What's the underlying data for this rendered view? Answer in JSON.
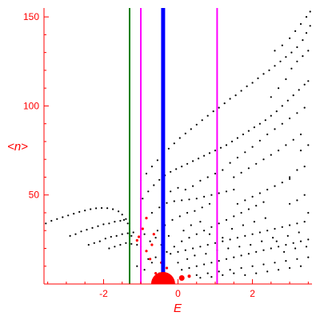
{
  "chart_data": {
    "type": "scatter",
    "title": "",
    "xlabel": "E",
    "ylabel": "<n>",
    "xlim": [
      -3.6,
      3.6
    ],
    "ylim": [
      0,
      155
    ],
    "xticks": [
      -2,
      0,
      2
    ],
    "yticks": [
      50,
      100,
      150
    ],
    "colors": {
      "axis": "#ff0000",
      "points": "#000000",
      "highlight": "#ff0000",
      "line_green": "#008000",
      "line_magenta": "#ff00ff",
      "line_blue": "#0000ff"
    },
    "vertical_lines": [
      {
        "x": -1.3,
        "color": "#008000",
        "width": 2
      },
      {
        "x": -1.0,
        "color": "#ff00ff",
        "width": 2
      },
      {
        "x": -0.4,
        "color": "#0000ff",
        "width": 5
      },
      {
        "x": 1.05,
        "color": "#ff00ff",
        "width": 2
      }
    ],
    "series": [
      {
        "color": "#000000",
        "points": [
          [
            -3.55,
            34
          ],
          [
            -3.4,
            35.5
          ],
          [
            -3.25,
            36.5
          ],
          [
            -3.1,
            37.5
          ],
          [
            -2.95,
            38.5
          ],
          [
            -2.8,
            39.5
          ],
          [
            -2.65,
            40.5
          ],
          [
            -2.5,
            41.3
          ],
          [
            -2.35,
            42
          ],
          [
            -2.2,
            42.5
          ],
          [
            -2.05,
            42.7
          ],
          [
            -1.9,
            42.6
          ],
          [
            -1.75,
            42
          ],
          [
            -1.6,
            40.8
          ],
          [
            -1.5,
            39
          ],
          [
            -1.4,
            36.5
          ],
          [
            -1.35,
            34
          ],
          [
            -2.9,
            27
          ],
          [
            -2.75,
            28
          ],
          [
            -2.6,
            29.5
          ],
          [
            -2.45,
            30.5
          ],
          [
            -2.3,
            31.5
          ],
          [
            -2.15,
            32.5
          ],
          [
            -2,
            33.5
          ],
          [
            -1.85,
            34
          ],
          [
            -1.7,
            35
          ],
          [
            -1.55,
            35.5
          ],
          [
            -1.45,
            36
          ],
          [
            -1.3,
            31
          ],
          [
            -1.2,
            29
          ],
          [
            -2.4,
            22
          ],
          [
            -2.25,
            23
          ],
          [
            -2.1,
            24
          ],
          [
            -1.95,
            25.5
          ],
          [
            -1.8,
            26.5
          ],
          [
            -1.65,
            27
          ],
          [
            -1.5,
            28
          ],
          [
            -1.35,
            28.5
          ],
          [
            -1.25,
            27
          ],
          [
            -1.85,
            20
          ],
          [
            -1.7,
            21
          ],
          [
            -1.55,
            22
          ],
          [
            -1.4,
            23
          ],
          [
            -1.25,
            22.5
          ],
          [
            -1.1,
            22
          ],
          [
            -1.0,
            21
          ],
          [
            -1.0,
            58
          ],
          [
            -0.85,
            62
          ],
          [
            -0.7,
            66
          ],
          [
            -0.55,
            69.5
          ],
          [
            -0.4,
            73
          ],
          [
            -0.25,
            76
          ],
          [
            -0.1,
            79
          ],
          [
            0.05,
            82
          ],
          [
            0.2,
            84.5
          ],
          [
            0.35,
            87
          ],
          [
            0.5,
            89.5
          ],
          [
            0.65,
            92
          ],
          [
            0.8,
            94.5
          ],
          [
            0.95,
            97
          ],
          [
            1.1,
            99
          ],
          [
            1.25,
            101.5
          ],
          [
            1.4,
            104
          ],
          [
            1.55,
            106
          ],
          [
            1.7,
            108.5
          ],
          [
            1.85,
            111
          ],
          [
            2,
            113
          ],
          [
            2.15,
            115.5
          ],
          [
            2.3,
            118
          ],
          [
            2.45,
            120
          ],
          [
            2.6,
            122.5
          ],
          [
            2.75,
            125
          ],
          [
            2.9,
            127.5
          ],
          [
            3.05,
            130
          ],
          [
            3.2,
            133
          ],
          [
            3.35,
            137
          ],
          [
            3.45,
            141
          ],
          [
            3.55,
            145
          ],
          [
            -0.95,
            48
          ],
          [
            -0.8,
            52
          ],
          [
            -0.65,
            55.5
          ],
          [
            -0.5,
            58.5
          ],
          [
            -0.35,
            61
          ],
          [
            -0.2,
            63
          ],
          [
            -0.05,
            64.5
          ],
          [
            0.1,
            66
          ],
          [
            0.25,
            67.5
          ],
          [
            0.4,
            69
          ],
          [
            0.55,
            70.5
          ],
          [
            0.7,
            72
          ],
          [
            0.85,
            73.5
          ],
          [
            1,
            75
          ],
          [
            1.15,
            76.5
          ],
          [
            1.3,
            78
          ],
          [
            1.45,
            80
          ],
          [
            1.6,
            82
          ],
          [
            1.75,
            84
          ],
          [
            1.9,
            86
          ],
          [
            2.05,
            88
          ],
          [
            2.2,
            90
          ],
          [
            2.35,
            92
          ],
          [
            2.5,
            94.5
          ],
          [
            2.65,
            97
          ],
          [
            2.8,
            100
          ],
          [
            2.95,
            103
          ],
          [
            3.1,
            106
          ],
          [
            3.25,
            109
          ],
          [
            3.4,
            112
          ],
          [
            3.5,
            114
          ],
          [
            1.4,
            68
          ],
          [
            1.6,
            71
          ],
          [
            1.8,
            74
          ],
          [
            2,
            77
          ],
          [
            2.2,
            80.5
          ],
          [
            2.4,
            84
          ],
          [
            2.6,
            87
          ],
          [
            2.8,
            90
          ],
          [
            3,
            93
          ],
          [
            3.2,
            96
          ],
          [
            3.4,
            99
          ],
          [
            1.5,
            60
          ],
          [
            1.7,
            62.5
          ],
          [
            1.9,
            65
          ],
          [
            2.1,
            67.5
          ],
          [
            2.3,
            70
          ],
          [
            2.5,
            72.5
          ],
          [
            2.7,
            75
          ],
          [
            2.9,
            78
          ],
          [
            3.1,
            81
          ],
          [
            3.3,
            84
          ],
          [
            2.5,
            105
          ],
          [
            2.7,
            110
          ],
          [
            2.9,
            115
          ],
          [
            3.05,
            121
          ],
          [
            3.2,
            125
          ],
          [
            3.35,
            128
          ],
          [
            3.5,
            131
          ],
          [
            2.6,
            131
          ],
          [
            2.8,
            134
          ],
          [
            3.0,
            138
          ],
          [
            3.15,
            142
          ],
          [
            3.3,
            146
          ],
          [
            3.45,
            150
          ],
          [
            3.55,
            153
          ],
          [
            3.0,
            60
          ],
          [
            3.2,
            64
          ],
          [
            3.4,
            66
          ],
          [
            3.0,
            45
          ],
          [
            3.2,
            47
          ],
          [
            3.4,
            50
          ],
          [
            3.3,
            75
          ],
          [
            3.5,
            78
          ],
          [
            -0.7,
            40
          ],
          [
            -0.5,
            43
          ],
          [
            -0.3,
            45.5
          ],
          [
            -0.1,
            46.5
          ],
          [
            0.1,
            47
          ],
          [
            0.3,
            47.5
          ],
          [
            0.5,
            48
          ],
          [
            0.7,
            49
          ],
          [
            0.9,
            50
          ],
          [
            1.1,
            51
          ],
          [
            1.3,
            52
          ],
          [
            1.5,
            53
          ],
          [
            -0.55,
            30
          ],
          [
            -0.35,
            33
          ],
          [
            -0.15,
            36
          ],
          [
            0.05,
            38
          ],
          [
            0.25,
            40
          ],
          [
            0.45,
            41
          ],
          [
            0.65,
            43
          ],
          [
            0.85,
            45
          ],
          [
            -0.3,
            18
          ],
          [
            -0.1,
            21
          ],
          [
            0.1,
            24
          ],
          [
            0.3,
            26
          ],
          [
            0.5,
            28
          ],
          [
            0.7,
            30
          ],
          [
            0.9,
            32
          ],
          [
            1.1,
            34
          ],
          [
            1.3,
            36
          ],
          [
            1.5,
            38
          ],
          [
            1.7,
            40
          ],
          [
            1.9,
            42
          ],
          [
            2.1,
            44
          ],
          [
            2.3,
            46
          ],
          [
            -0.8,
            14
          ],
          [
            -0.6,
            15
          ],
          [
            -0.4,
            16.5
          ],
          [
            -0.2,
            17
          ],
          [
            0,
            18
          ],
          [
            0.2,
            19
          ],
          [
            0.4,
            20
          ],
          [
            0.6,
            21
          ],
          [
            0.8,
            22
          ],
          [
            1.0,
            23
          ],
          [
            1.2,
            24
          ],
          [
            1.4,
            25
          ],
          [
            1.6,
            26
          ],
          [
            1.8,
            27
          ],
          [
            2.0,
            28
          ],
          [
            2.2,
            29
          ],
          [
            2.4,
            30
          ],
          [
            2.6,
            31
          ],
          [
            2.8,
            32
          ],
          [
            3.0,
            33
          ],
          [
            3.2,
            34
          ],
          [
            3.4,
            35
          ],
          [
            0.1,
            8
          ],
          [
            0.3,
            9
          ],
          [
            0.5,
            10
          ],
          [
            0.7,
            11
          ],
          [
            0.9,
            12
          ],
          [
            1.1,
            13
          ],
          [
            1.3,
            14
          ],
          [
            1.5,
            15
          ],
          [
            1.7,
            16
          ],
          [
            1.9,
            17
          ],
          [
            2.1,
            18
          ],
          [
            2.3,
            19
          ],
          [
            2.5,
            20
          ],
          [
            2.7,
            21
          ],
          [
            2.9,
            22
          ],
          [
            3.1,
            23
          ],
          [
            3.3,
            24
          ],
          [
            3.5,
            25
          ],
          [
            0.5,
            5
          ],
          [
            0.8,
            6
          ],
          [
            1.1,
            7
          ],
          [
            1.4,
            8
          ],
          [
            1.7,
            9
          ],
          [
            2.0,
            10
          ],
          [
            2.3,
            11
          ],
          [
            2.6,
            12
          ],
          [
            2.9,
            13
          ],
          [
            3.2,
            14
          ],
          [
            3.5,
            15
          ],
          [
            -0.9,
            28
          ],
          [
            -0.75,
            24
          ],
          [
            -0.6,
            26
          ],
          [
            -0.45,
            22
          ],
          [
            -0.25,
            27
          ],
          [
            0.15,
            30
          ],
          [
            0.35,
            33
          ],
          [
            0.6,
            35
          ],
          [
            0.85,
            28
          ],
          [
            1.2,
            26
          ],
          [
            1.45,
            31
          ],
          [
            1.75,
            33
          ],
          [
            2.05,
            35
          ],
          [
            2.35,
            37
          ],
          [
            2.65,
            24
          ],
          [
            2.95,
            27
          ],
          [
            3.25,
            29
          ],
          [
            3.5,
            40
          ],
          [
            -1.1,
            10
          ],
          [
            -0.9,
            8
          ],
          [
            -0.7,
            12
          ],
          [
            -0.5,
            6
          ],
          [
            0.0,
            12
          ],
          [
            0.25,
            14
          ],
          [
            0.45,
            16
          ],
          [
            0.75,
            17
          ],
          [
            1.05,
            19
          ],
          [
            1.35,
            20
          ],
          [
            1.65,
            21
          ],
          [
            1.95,
            22
          ],
          [
            2.25,
            24
          ],
          [
            2.55,
            26
          ],
          [
            2.85,
            18
          ],
          [
            3.15,
            20
          ],
          [
            3.45,
            21
          ],
          [
            0.4,
            55
          ],
          [
            0.6,
            58
          ],
          [
            0.8,
            60
          ],
          [
            1.0,
            62
          ],
          [
            1.2,
            64
          ],
          [
            -0.2,
            52
          ],
          [
            0.0,
            54
          ],
          [
            0.2,
            53
          ],
          [
            1.6,
            45
          ],
          [
            1.8,
            47
          ],
          [
            2.0,
            49
          ],
          [
            2.2,
            51
          ],
          [
            2.4,
            53
          ],
          [
            2.6,
            55
          ],
          [
            2.8,
            57
          ],
          [
            3.0,
            59
          ],
          [
            0.3,
            4
          ],
          [
            0.6,
            3.5
          ],
          [
            0.9,
            4
          ],
          [
            1.2,
            5
          ],
          [
            1.5,
            6
          ],
          [
            1.8,
            5
          ],
          [
            2.1,
            6
          ],
          [
            2.4,
            7
          ],
          [
            2.7,
            8
          ],
          [
            3.0,
            9
          ],
          [
            3.3,
            10
          ]
        ]
      },
      {
        "color": "#ff0000",
        "points": [
          [
            -1.05,
            26.5
          ],
          [
            -1.1,
            24.5
          ],
          [
            -0.85,
            18.5
          ],
          [
            -0.95,
            31
          ],
          [
            -0.7,
            22
          ],
          [
            -0.45,
            12
          ],
          [
            -0.3,
            9
          ],
          [
            -0.6,
            6
          ],
          [
            -0.75,
            14
          ],
          [
            -0.85,
            37
          ],
          [
            -0.65,
            28
          ]
        ]
      }
    ],
    "markers": [
      {
        "x": -0.4,
        "y": 0,
        "color": "#ff0000",
        "shape": "half-disc",
        "size": "large"
      },
      {
        "x": 0.1,
        "y": 2,
        "color": "#ff0000",
        "shape": "dot",
        "size": "medium"
      },
      {
        "x": 0.3,
        "y": 3,
        "color": "#ff0000",
        "shape": "dot",
        "size": "small"
      }
    ]
  }
}
